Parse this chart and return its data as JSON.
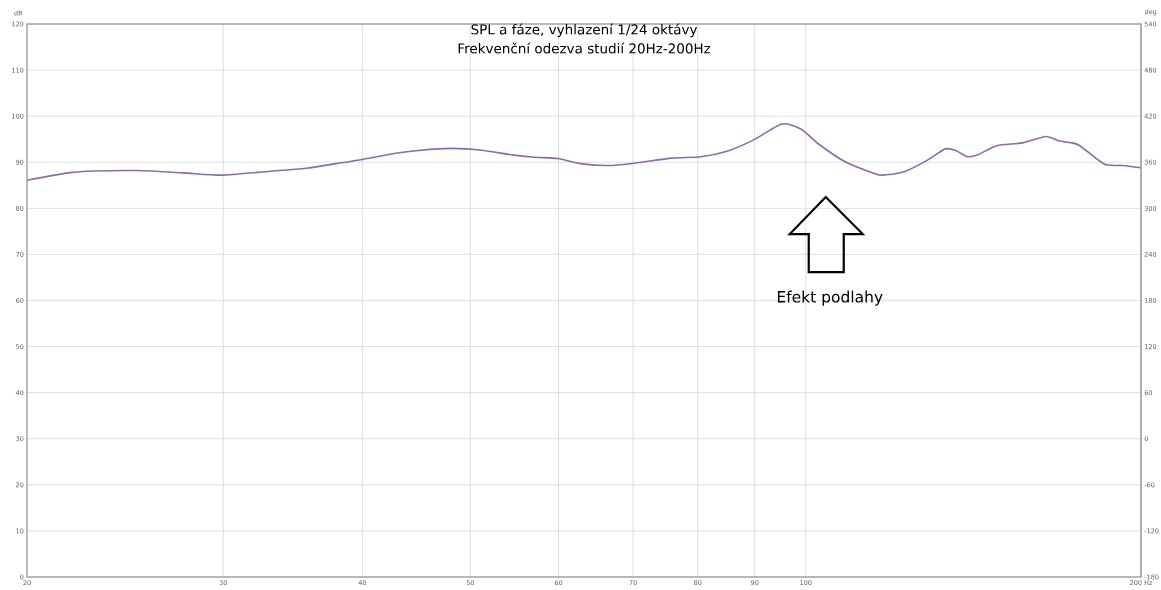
{
  "chart_data": {
    "type": "line",
    "title": "SPL a fáze, vyhlazení 1/24 oktávy",
    "subtitle": "Frekvenční odezva studií 20Hz-200Hz",
    "ylabel": "dB",
    "y2label": "deg",
    "x": [
      20,
      21.8,
      23.0,
      25.1,
      27.6,
      29.9,
      32.9,
      35.6,
      37.9,
      40.0,
      42.7,
      45.1,
      48.0,
      51.2,
      54.5,
      57.1,
      59.9,
      62.8,
      66.5,
      70.2,
      75.8,
      80.5,
      85.0,
      89.7,
      95.2,
      99.0,
      102.9,
      108.5,
      115.4,
      117.1,
      122.7,
      128.5,
      133.4,
      136.5,
      139.7,
      142.9,
      148.5,
      156.6,
      164.2,
      169.0,
      175.6,
      185.3,
      192.5,
      200
    ],
    "series": [
      {
        "color": "#8c6ba8",
        "values": [
          86.1,
          87.7,
          88.1,
          88.2,
          87.7,
          87.2,
          88.0,
          88.7,
          89.7,
          90.6,
          91.9,
          92.6,
          93.0,
          92.6,
          91.6,
          91.1,
          90.8,
          89.7,
          89.3,
          89.8,
          90.9,
          91.2,
          92.4,
          94.8,
          98.3,
          97.2,
          93.8,
          90.1,
          87.5,
          87.2,
          88.0,
          90.4,
          92.9,
          92.5,
          91.2,
          91.7,
          93.6,
          94.2,
          95.6,
          94.6,
          93.8,
          89.6,
          89.3,
          88.8
        ]
      }
    ],
    "xlim": [
      20,
      200
    ],
    "ylim": [
      0,
      120
    ],
    "y2lim": [
      -180,
      540
    ],
    "xticks": [
      20,
      30,
      40,
      50,
      60,
      70,
      80,
      90,
      100,
      {
        "value": 200,
        "label": "200 Hz"
      }
    ],
    "yticks": [
      0,
      10,
      20,
      30,
      40,
      50,
      60,
      70,
      80,
      90,
      100,
      110,
      120
    ],
    "y2ticks": [
      -180,
      -120,
      -60,
      0,
      60,
      120,
      180,
      240,
      300,
      360,
      420,
      480,
      540
    ],
    "log": "x",
    "grid": true,
    "annotations": [
      "Efekt podlahy"
    ]
  }
}
